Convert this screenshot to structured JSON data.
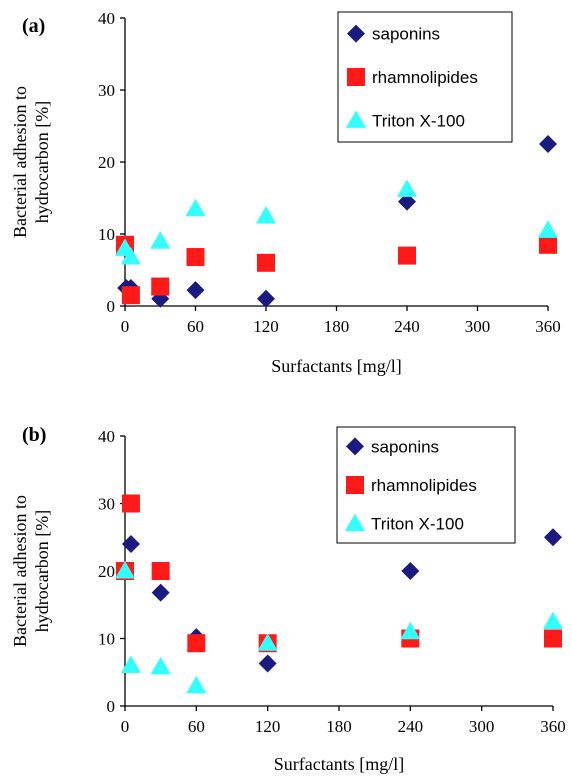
{
  "chart_data": [
    {
      "panel": "(a)",
      "type": "scatter",
      "xlabel": "Surfactants [mg/l]",
      "ylabel_lines": [
        "Bacterial adhesion to",
        "hydrocarbon [%]"
      ],
      "xlim": [
        0,
        360
      ],
      "ylim": [
        0,
        40
      ],
      "xticks": [
        "0",
        "60",
        "120",
        "180",
        "240",
        "300",
        "360"
      ],
      "yticks": [
        "0",
        "10",
        "20",
        "30",
        "40"
      ],
      "legend_position": "top-right",
      "series": [
        {
          "name": "saponins",
          "color": "#1a1a80",
          "marker": "diamond",
          "points": [
            [
              1,
              2.5
            ],
            [
              5,
              2.5
            ],
            [
              30,
              1.0
            ],
            [
              60,
              2.2
            ],
            [
              120,
              1.0
            ],
            [
              240,
              14.5
            ],
            [
              360,
              22.5
            ]
          ]
        },
        {
          "name": "rhamnolipides",
          "color": "#ff1a1a",
          "marker": "square",
          "points": [
            [
              0,
              8.5
            ],
            [
              5,
              1.5
            ],
            [
              30,
              2.7
            ],
            [
              60,
              6.8
            ],
            [
              120,
              6.0
            ],
            [
              240,
              7.0
            ],
            [
              360,
              8.5
            ]
          ]
        },
        {
          "name": "Triton X-100",
          "color": "#33ffff",
          "marker": "triangle",
          "points": [
            [
              0,
              8.0
            ],
            [
              5,
              6.8
            ],
            [
              30,
              9.0
            ],
            [
              60,
              13.5
            ],
            [
              120,
              12.5
            ],
            [
              240,
              16.2
            ],
            [
              360,
              10.5
            ]
          ]
        }
      ]
    },
    {
      "panel": "(b)",
      "type": "scatter",
      "xlabel": "Surfactants [mg/l]",
      "ylabel_lines": [
        "Bacterial adhesion to",
        "hydrocarbon [%]"
      ],
      "xlim": [
        0,
        360
      ],
      "ylim": [
        0,
        40
      ],
      "xticks": [
        "0",
        "60",
        "120",
        "180",
        "240",
        "300",
        "360"
      ],
      "yticks": [
        "0",
        "10",
        "20",
        "30",
        "40"
      ],
      "legend_position": "top-right",
      "series": [
        {
          "name": "saponins",
          "color": "#1a1a80",
          "marker": "diamond",
          "points": [
            [
              0,
              20.0
            ],
            [
              5,
              24.0
            ],
            [
              30,
              16.8
            ],
            [
              60,
              10.2
            ],
            [
              120,
              6.3
            ],
            [
              240,
              20.0
            ],
            [
              360,
              25.0
            ]
          ]
        },
        {
          "name": "rhamnolipides",
          "color": "#ff1a1a",
          "marker": "square",
          "points": [
            [
              0,
              20.0
            ],
            [
              5,
              30.0
            ],
            [
              30,
              20.0
            ],
            [
              60,
              9.3
            ],
            [
              120,
              9.3
            ],
            [
              240,
              10.0
            ],
            [
              360,
              10.0
            ]
          ]
        },
        {
          "name": "Triton X-100",
          "color": "#33ffff",
          "marker": "triangle",
          "points": [
            [
              0,
              20.0
            ],
            [
              5,
              6.0
            ],
            [
              30,
              5.8
            ],
            [
              60,
              3.0
            ],
            [
              120,
              9.3
            ],
            [
              240,
              11.0
            ],
            [
              360,
              12.5
            ]
          ]
        }
      ]
    }
  ]
}
